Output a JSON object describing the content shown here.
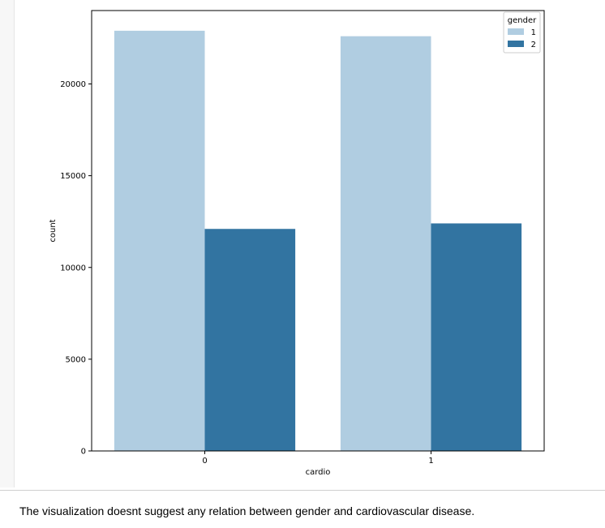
{
  "chart_data": {
    "type": "bar",
    "categories": [
      "0",
      "1"
    ],
    "series": [
      {
        "name": "1",
        "values": [
          22900,
          22600
        ],
        "color": "#b0cde1"
      },
      {
        "name": "2",
        "values": [
          12100,
          12400
        ],
        "color": "#3274a1"
      }
    ],
    "xlabel": "cardio",
    "ylabel": "count",
    "ylim": [
      0,
      24000
    ],
    "yticks": [
      0,
      5000,
      10000,
      15000,
      20000
    ],
    "legend": {
      "title": "gender",
      "placement": "top-right"
    },
    "grid": false
  },
  "markdown": {
    "text": "The visualization doesnt suggest any relation between gender and cardiovascular disease."
  }
}
